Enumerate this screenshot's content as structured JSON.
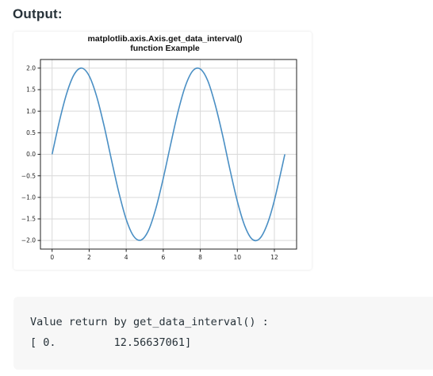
{
  "heading": "Output:",
  "console": {
    "line1": "Value return by get_data_interval() :",
    "line2": "[ 0.         12.56637061]"
  },
  "chart_data": {
    "type": "line",
    "title_line1": "matplotlib.axis.Axis.get_data_interval()",
    "title_line2": "function Example",
    "xlabel": "",
    "ylabel": "",
    "xlim": [
      -0.63,
      13.2
    ],
    "ylim": [
      -2.2,
      2.2
    ],
    "xticks": [
      0,
      2,
      4,
      6,
      8,
      10,
      12
    ],
    "yticks": [
      2.0,
      1.5,
      1.0,
      0.5,
      0.0,
      -0.5,
      -1.0,
      -1.5,
      -2.0
    ],
    "ytick_labels": [
      "2.0",
      "1.5",
      "1.0",
      "0.5",
      "0.0",
      "−0.5",
      "−1.0",
      "−1.5",
      "−2.0"
    ],
    "grid": true,
    "line_color": "#4a8fc4",
    "series": [
      {
        "x": [
          0.0,
          0.4,
          0.8,
          1.2,
          1.6,
          2.0,
          2.4,
          2.8,
          3.2,
          3.6,
          4.0,
          4.4,
          4.8,
          5.2,
          5.6,
          6.0,
          6.4,
          6.8,
          7.2,
          7.6,
          8.0,
          8.4,
          8.8,
          9.2,
          9.6,
          10.0,
          10.4,
          10.8,
          11.2,
          11.6,
          12.0,
          12.566
        ],
        "y": [
          0.0,
          0.78,
          1.43,
          1.86,
          2.0,
          1.82,
          1.35,
          0.67,
          -0.12,
          -0.88,
          -1.51,
          -1.9,
          -1.99,
          -1.77,
          -1.26,
          -0.56,
          0.23,
          0.99,
          1.59,
          1.94,
          1.98,
          1.71,
          1.16,
          0.45,
          -0.35,
          -1.09,
          -1.66,
          -1.97,
          -1.96,
          -1.64,
          -1.07,
          0.0
        ]
      }
    ]
  }
}
